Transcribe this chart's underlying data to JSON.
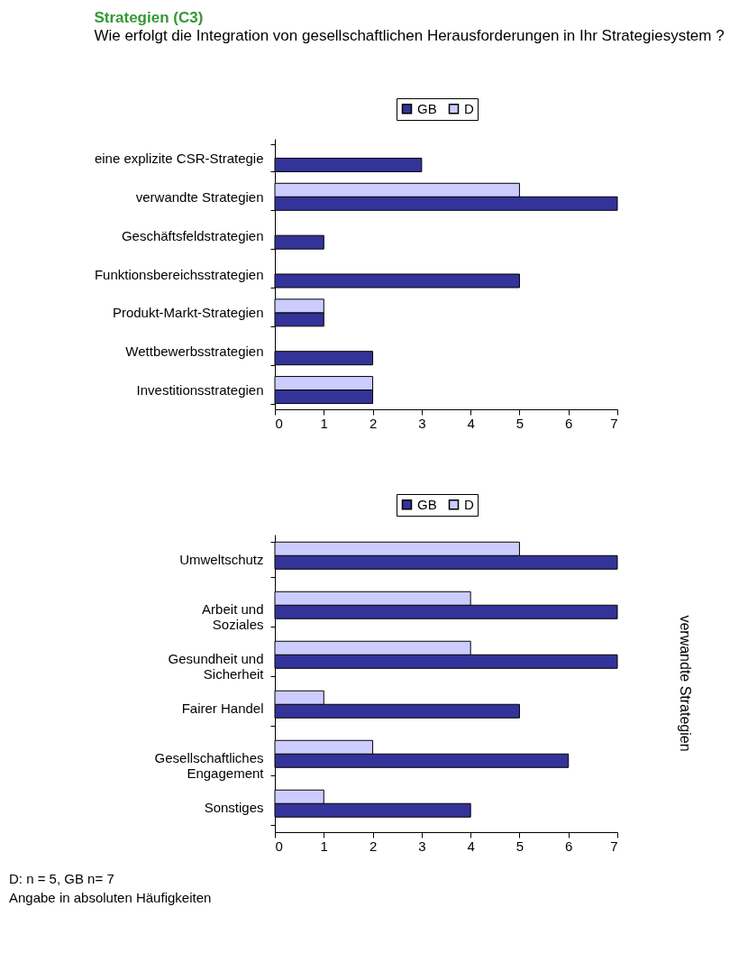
{
  "chart_data": [
    {
      "type": "bar",
      "orientation": "horizontal",
      "title": "Strategien (C3)",
      "subtitle": "Wie erfolgt die Integration von gesellschaftlichen Herausforderungen in Ihr Strategiesystem ?",
      "categories": [
        "eine explizite CSR-Strategie",
        "verwandte Strategien",
        "Geschäftsfeldstrategien",
        "Funktionsbereichsstrategien",
        "Produkt-Markt-Strategien",
        "Wettbewerbsstrategien",
        "Investitionsstrategien"
      ],
      "series": [
        {
          "name": "GB",
          "color": "#333399",
          "values": [
            3,
            7,
            1,
            5,
            1,
            2,
            2
          ]
        },
        {
          "name": "D",
          "color": "#ccccff",
          "values": [
            null,
            5,
            null,
            null,
            1,
            null,
            2
          ]
        }
      ],
      "xlim": [
        0,
        7
      ],
      "xticks": [
        0,
        1,
        2,
        3,
        4,
        5,
        6,
        7
      ],
      "legend": "top",
      "grid": false
    },
    {
      "type": "bar",
      "orientation": "horizontal",
      "categories": [
        "Umweltschutz",
        "Arbeit und\nSoziales",
        "Gesundheit und\nSicherheit",
        "Fairer Handel",
        "Gesellschaftliches\nEngagement",
        "Sonstiges"
      ],
      "series": [
        {
          "name": "GB",
          "color": "#333399",
          "values": [
            7,
            7,
            7,
            5,
            6,
            4
          ]
        },
        {
          "name": "D",
          "color": "#ccccff",
          "values": [
            5,
            4,
            4,
            1,
            2,
            1
          ]
        }
      ],
      "xlim": [
        0,
        7
      ],
      "xticks": [
        0,
        1,
        2,
        3,
        4,
        5,
        6,
        7
      ],
      "legend": "top",
      "grid": false,
      "annotations": [
        "verwandte Strategien",
        "D: n = 5, GB n= 7",
        "Angabe in absoluten Häufigkeiten"
      ]
    }
  ]
}
